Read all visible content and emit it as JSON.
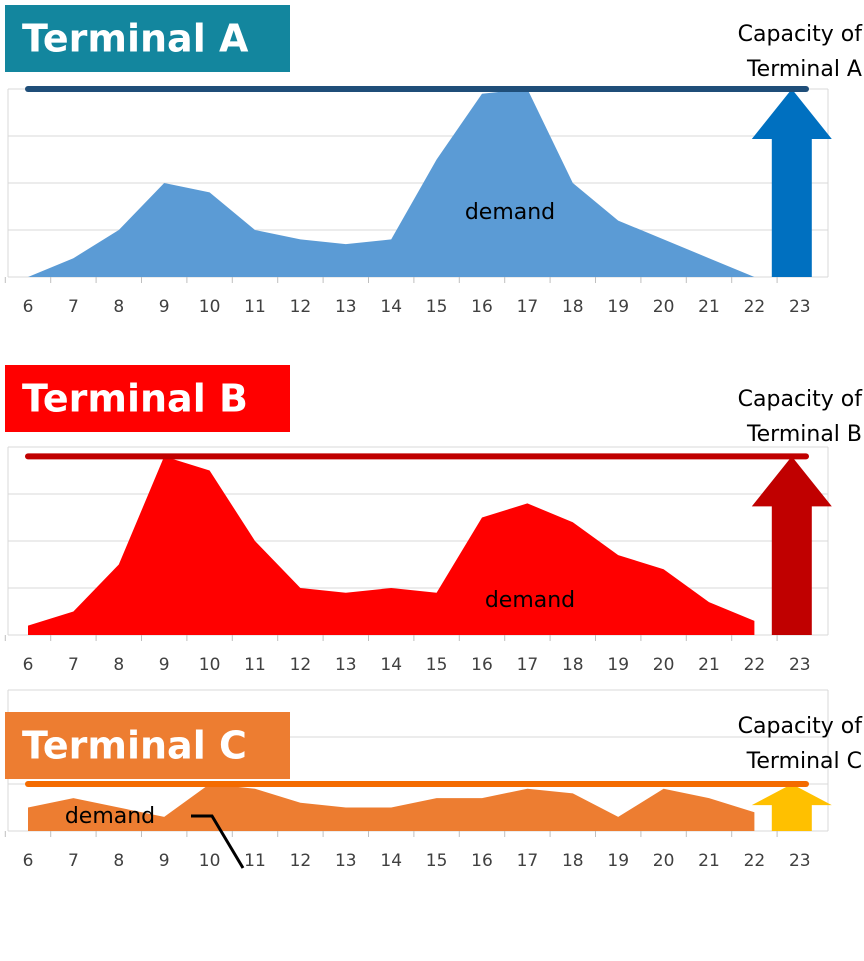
{
  "chart_data": [
    {
      "type": "area",
      "title": "Terminal A",
      "annotation": "demand",
      "capacity_label_lines": [
        "Capacity of",
        "Terminal A"
      ],
      "categories": [
        6,
        7,
        8,
        9,
        10,
        11,
        12,
        13,
        14,
        15,
        16,
        17,
        18,
        19,
        20,
        21,
        22,
        23
      ],
      "values": [
        0,
        0.4,
        1.0,
        2.0,
        1.8,
        1.0,
        0.8,
        0.7,
        0.8,
        2.5,
        3.9,
        4.0,
        2.0,
        1.2,
        0.8,
        0.4,
        0,
        null
      ],
      "capacity": 4.0,
      "ylim": [
        0,
        4
      ],
      "yticks": [
        0,
        1,
        2,
        3,
        4
      ],
      "grid": true,
      "color": "#5b9bd5",
      "capacity_color": "#1f4e79",
      "arrow_color": "#0070c0",
      "title_color": "#13869e"
    },
    {
      "type": "area",
      "title": "Terminal B",
      "annotation": "demand",
      "capacity_label_lines": [
        "Capacity of",
        "Terminal B"
      ],
      "categories": [
        6,
        7,
        8,
        9,
        10,
        11,
        12,
        13,
        14,
        15,
        16,
        17,
        18,
        19,
        20,
        21,
        22,
        23
      ],
      "values": [
        0.2,
        0.5,
        1.5,
        3.8,
        3.5,
        2.0,
        1.0,
        0.9,
        1.0,
        0.9,
        2.5,
        2.8,
        2.4,
        1.7,
        1.4,
        0.7,
        0.3,
        null
      ],
      "capacity": 3.8,
      "ylim": [
        0,
        4
      ],
      "yticks": [
        0,
        1,
        2,
        3,
        4
      ],
      "grid": true,
      "color": "#ff0000",
      "capacity_color": "#c00000",
      "arrow_color": "#c00000",
      "title_color": "#ff0000"
    },
    {
      "type": "area",
      "title": "Terminal C",
      "annotation": "demand",
      "capacity_label_lines": [
        "Capacity of",
        "Terminal C"
      ],
      "categories": [
        6,
        7,
        8,
        9,
        10,
        11,
        12,
        13,
        14,
        15,
        16,
        17,
        18,
        19,
        20,
        21,
        22,
        23
      ],
      "values": [
        0.5,
        0.7,
        0.5,
        0.3,
        1.0,
        0.9,
        0.6,
        0.5,
        0.5,
        0.7,
        0.7,
        0.9,
        0.8,
        0.3,
        0.9,
        0.7,
        0.4,
        null
      ],
      "capacity": 1.0,
      "ylim": [
        0,
        3
      ],
      "yticks": [
        0,
        1,
        2,
        3
      ],
      "grid": true,
      "color": "#ed7d31",
      "capacity_color": "#f46b00",
      "arrow_color": "#ffc000",
      "title_color": "#ed7d31"
    }
  ]
}
